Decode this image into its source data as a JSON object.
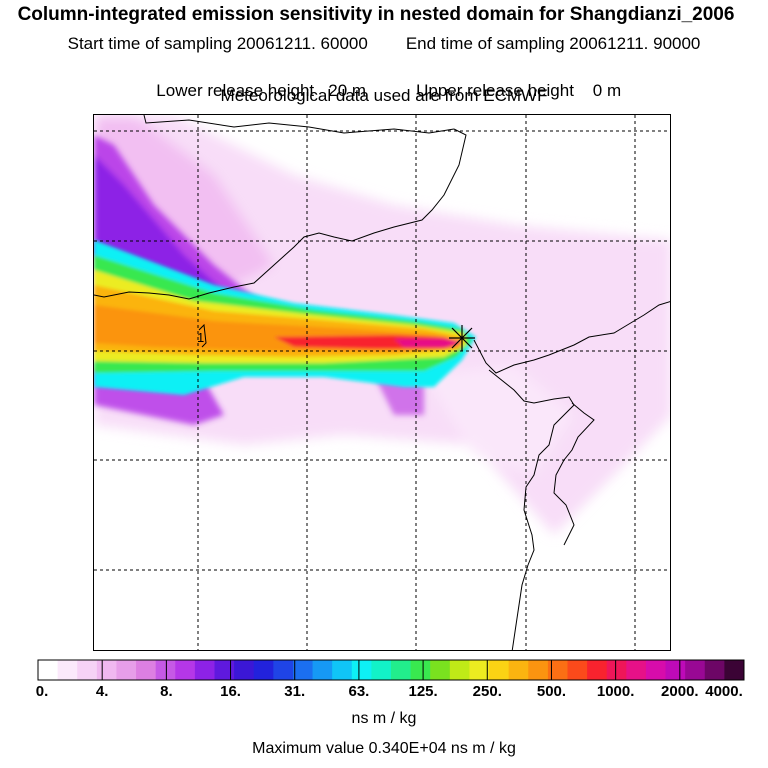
{
  "title": "Column-integrated emission sensitivity in nested domain for Shangdianzi_2006",
  "sampling": {
    "start": "Start time of sampling 20061211. 60000",
    "end": "End time of sampling 20061211. 90000"
  },
  "release": {
    "lower": "Lower release height   20 m",
    "upper": "Upper release height    0 m"
  },
  "met_source": "Meteorological data used are from ECMWF",
  "station_marker": "1",
  "colorbar": {
    "colors": [
      "#ffffff",
      "#fbe9fb",
      "#f6d2f6",
      "#f0b8f0",
      "#e79ee9",
      "#dd7fe2",
      "#c659e6",
      "#b537e8",
      "#8d22e6",
      "#5f19de",
      "#3b17d6",
      "#2222dc",
      "#1f44e6",
      "#1b6ff0",
      "#1699f5",
      "#10c5f7",
      "#0ef0f5",
      "#12f2c8",
      "#22ee8c",
      "#39e84f",
      "#7ae21f",
      "#c0ea17",
      "#ecec20",
      "#fbd314",
      "#fbb410",
      "#fb9410",
      "#fb6f14",
      "#fb4a1b",
      "#f8232e",
      "#ef1659",
      "#e61188",
      "#d70cab",
      "#be0ab8",
      "#990894",
      "#6d0666",
      "#3b0335"
    ],
    "tick_labels": [
      "0.",
      "4.",
      "8.",
      "16.",
      "31.",
      "63.",
      "125.",
      "250.",
      "500.",
      "1000.",
      "2000.",
      "4000."
    ],
    "units": "ns m / kg"
  },
  "maximum": "Maximum value  0.340E+04 ns m / kg"
}
